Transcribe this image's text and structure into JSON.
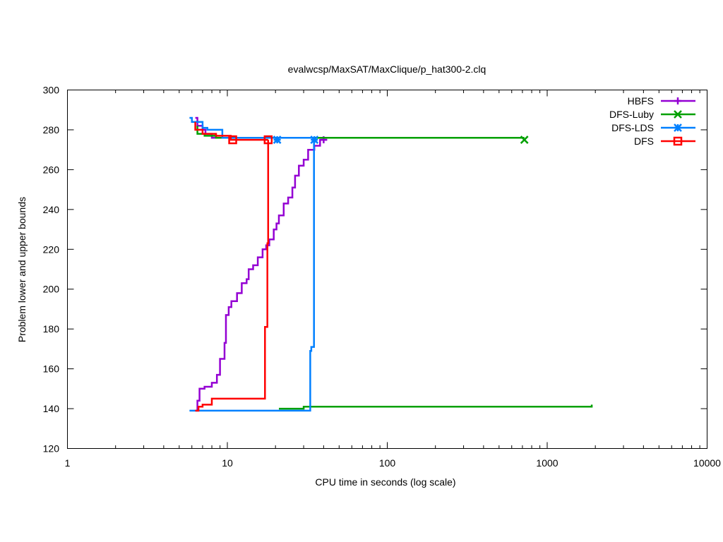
{
  "chart_data": {
    "type": "line",
    "title": "evalwcsp/MaxSAT/MaxClique/p_hat300-2.clq",
    "xlabel": "CPU time in seconds (log scale)",
    "ylabel": "Problem lower and upper bounds",
    "xscale": "log",
    "xlim": [
      1,
      10000
    ],
    "ylim": [
      120,
      300
    ],
    "x_ticks": [
      1,
      10,
      100,
      1000,
      10000
    ],
    "x_tick_labels": [
      "1",
      "10",
      "100",
      "1000",
      "10000"
    ],
    "y_ticks": [
      120,
      140,
      160,
      180,
      200,
      220,
      240,
      260,
      280,
      300
    ],
    "y_tick_labels": [
      "120",
      "140",
      "160",
      "180",
      "200",
      "220",
      "240",
      "260",
      "280",
      "300"
    ],
    "grid": false,
    "legend_position": "top-right",
    "series": [
      {
        "name": "HBFS",
        "color": "#9400D3",
        "marker": "plus",
        "upper": [
          [
            6.3,
            286
          ],
          [
            6.5,
            286
          ],
          [
            6.5,
            282
          ],
          [
            7.0,
            282
          ],
          [
            7.0,
            280
          ],
          [
            7.3,
            280
          ],
          [
            7.3,
            278
          ],
          [
            8.0,
            278
          ],
          [
            8.0,
            276
          ],
          [
            42,
            276
          ]
        ],
        "lower": [
          [
            6.3,
            139
          ],
          [
            6.5,
            139
          ],
          [
            6.5,
            144
          ],
          [
            6.7,
            144
          ],
          [
            6.7,
            150
          ],
          [
            7.2,
            150
          ],
          [
            7.2,
            151
          ],
          [
            8.0,
            151
          ],
          [
            8.0,
            153
          ],
          [
            8.6,
            153
          ],
          [
            8.6,
            157
          ],
          [
            9.0,
            157
          ],
          [
            9.0,
            165
          ],
          [
            9.6,
            165
          ],
          [
            9.6,
            173
          ],
          [
            9.8,
            173
          ],
          [
            9.8,
            187
          ],
          [
            10.2,
            187
          ],
          [
            10.2,
            191
          ],
          [
            10.6,
            191
          ],
          [
            10.6,
            194
          ],
          [
            11.5,
            194
          ],
          [
            11.5,
            198
          ],
          [
            12.3,
            198
          ],
          [
            12.3,
            203
          ],
          [
            13.2,
            203
          ],
          [
            13.2,
            205
          ],
          [
            13.6,
            205
          ],
          [
            13.6,
            210
          ],
          [
            14.5,
            210
          ],
          [
            14.5,
            212
          ],
          [
            15.5,
            212
          ],
          [
            15.5,
            216
          ],
          [
            16.6,
            216
          ],
          [
            16.6,
            220
          ],
          [
            17.5,
            220
          ],
          [
            17.5,
            222
          ],
          [
            18.3,
            222
          ],
          [
            18.3,
            225
          ],
          [
            19.5,
            225
          ],
          [
            19.5,
            230
          ],
          [
            20.3,
            230
          ],
          [
            20.3,
            233
          ],
          [
            21.0,
            233
          ],
          [
            21.0,
            237
          ],
          [
            22.5,
            237
          ],
          [
            22.5,
            243
          ],
          [
            24.0,
            243
          ],
          [
            24.0,
            246
          ],
          [
            25.5,
            246
          ],
          [
            25.5,
            251
          ],
          [
            26.5,
            251
          ],
          [
            26.5,
            257
          ],
          [
            28.0,
            257
          ],
          [
            28.0,
            262
          ],
          [
            30.0,
            262
          ],
          [
            30.0,
            265
          ],
          [
            32.0,
            265
          ],
          [
            32.0,
            270
          ],
          [
            35.0,
            270
          ],
          [
            35.0,
            272
          ],
          [
            38.0,
            272
          ],
          [
            38.0,
            275
          ],
          [
            42,
            275
          ]
        ],
        "marker_points": [
          [
            40,
            275
          ]
        ]
      },
      {
        "name": "DFS-Luby",
        "color": "#00A000",
        "marker": "cross",
        "upper": [
          [
            6.5,
            282
          ],
          [
            6.5,
            278
          ],
          [
            7.2,
            278
          ],
          [
            7.2,
            277
          ],
          [
            8.5,
            277
          ],
          [
            8.5,
            276
          ],
          [
            720,
            276
          ]
        ],
        "lower": [
          [
            21,
            140
          ],
          [
            30,
            140
          ],
          [
            30,
            141
          ],
          [
            1900,
            141
          ],
          [
            1900,
            142
          ]
        ],
        "marker_points": [
          [
            720,
            275
          ]
        ]
      },
      {
        "name": "DFS-LDS",
        "color": "#0080FF",
        "marker": "star",
        "upper": [
          [
            5.8,
            286
          ],
          [
            6.0,
            286
          ],
          [
            6.0,
            284
          ],
          [
            7.0,
            284
          ],
          [
            7.0,
            281
          ],
          [
            7.5,
            281
          ],
          [
            7.5,
            280
          ],
          [
            9.3,
            280
          ],
          [
            9.3,
            276
          ],
          [
            35,
            276
          ]
        ],
        "lower": [
          [
            5.8,
            139
          ],
          [
            33,
            139
          ],
          [
            33,
            169
          ],
          [
            33.5,
            169
          ],
          [
            33.5,
            171
          ],
          [
            34.8,
            171
          ],
          [
            34.8,
            275
          ],
          [
            35,
            275
          ]
        ],
        "marker_points": [
          [
            20.5,
            275
          ],
          [
            35,
            275
          ]
        ]
      },
      {
        "name": "DFS",
        "color": "#FF0000",
        "marker": "square",
        "upper": [
          [
            6.3,
            284
          ],
          [
            6.3,
            280
          ],
          [
            7.0,
            280
          ],
          [
            7.0,
            278
          ],
          [
            8.5,
            278
          ],
          [
            8.5,
            277
          ],
          [
            10.5,
            277
          ],
          [
            10.5,
            275
          ],
          [
            18,
            275
          ]
        ],
        "lower": [
          [
            6.3,
            139
          ],
          [
            6.6,
            139
          ],
          [
            6.6,
            141
          ],
          [
            7.0,
            141
          ],
          [
            7.0,
            142
          ],
          [
            8.0,
            142
          ],
          [
            8.0,
            145
          ],
          [
            17.2,
            145
          ],
          [
            17.2,
            181
          ],
          [
            17.8,
            181
          ],
          [
            17.8,
            223
          ],
          [
            18.0,
            223
          ],
          [
            18.0,
            275
          ]
        ],
        "marker_points": [
          [
            10.8,
            275
          ],
          [
            18,
            275
          ]
        ]
      }
    ]
  }
}
